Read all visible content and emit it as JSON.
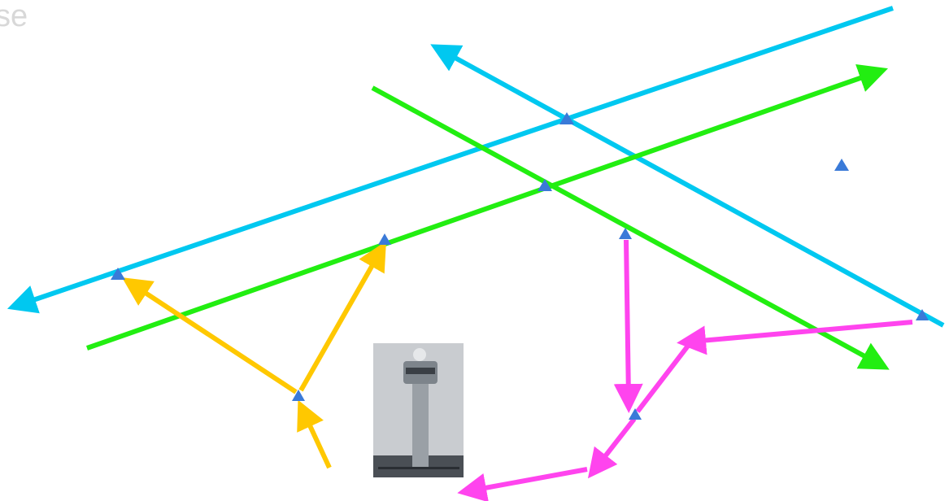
{
  "header": {
    "title": "se"
  }
}
